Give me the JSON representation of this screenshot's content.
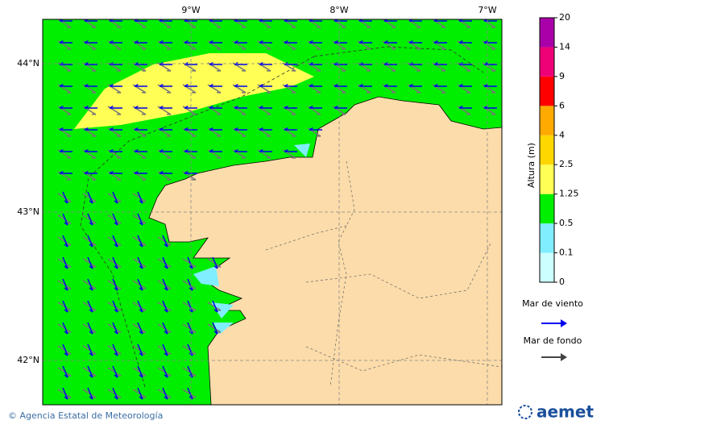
{
  "map": {
    "lon_ticks": [
      {
        "value": -9,
        "label": "9°W"
      },
      {
        "value": -8,
        "label": "8°W"
      },
      {
        "value": -7,
        "label": "7°W"
      }
    ],
    "lat_ticks": [
      {
        "value": 44,
        "label": "44°N"
      },
      {
        "value": 43,
        "label": "43°N"
      },
      {
        "value": 42,
        "label": "42°N"
      }
    ]
  },
  "colorbar": {
    "title": "Altura (m)",
    "levels": [
      0,
      0.1,
      0.5,
      1.25,
      2.5,
      4,
      6,
      9,
      14,
      20
    ],
    "colors": [
      "#ccffff",
      "#80eeff",
      "#00ee00",
      "#ffff55",
      "#ffd700",
      "#ffaa00",
      "#ff0000",
      "#ee0077",
      "#aa00aa"
    ]
  },
  "legend": {
    "wind_sea": "Mar de viento",
    "swell": "Mar de fondo"
  },
  "footer": {
    "credit": "© Agencia Estatal de Meteorología",
    "logo": "aemet"
  }
}
